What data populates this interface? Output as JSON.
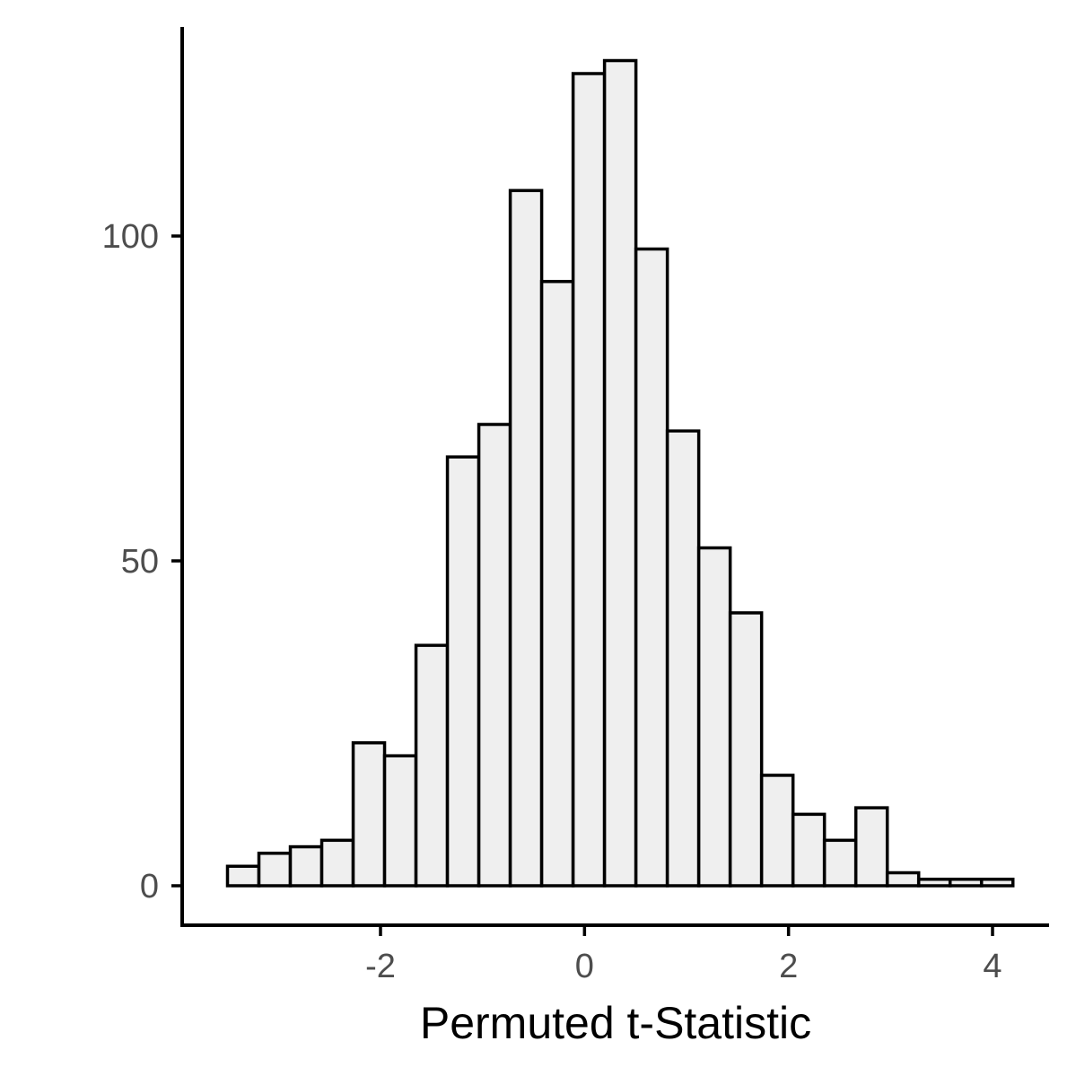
{
  "chart_data": {
    "type": "bar",
    "subtype": "histogram",
    "title": "",
    "xlabel": "Permuted t-Statistic",
    "ylabel": "",
    "xlim": [
      -3.5,
      4.2
    ],
    "ylim": [
      -6,
      126
    ],
    "x_ticks": [
      -2,
      0,
      2,
      4
    ],
    "x_tick_labels": [
      "-2",
      "0",
      "2",
      "4"
    ],
    "y_ticks": [
      0,
      50,
      100
    ],
    "y_tick_labels": [
      "0",
      "50",
      "100"
    ],
    "bin_width": 0.308,
    "bin_edges": [
      -3.5,
      -3.192,
      -2.884,
      -2.576,
      -2.268,
      -1.96,
      -1.652,
      -1.344,
      -1.036,
      -0.728,
      -0.42,
      -0.112,
      0.196,
      0.504,
      0.812,
      1.12,
      1.428,
      1.736,
      2.044,
      2.352,
      2.66,
      2.968,
      3.276,
      3.584,
      3.892,
      4.2
    ],
    "values": [
      3,
      5,
      6,
      7,
      22,
      20,
      37,
      66,
      71,
      107,
      93,
      125,
      127,
      98,
      70,
      52,
      42,
      17,
      11,
      7,
      12,
      2,
      1,
      1,
      1
    ],
    "grid": false,
    "legend": "none",
    "colors": {
      "bar_fill": "#efefef",
      "bar_stroke": "#000000",
      "axis": "#000000",
      "tick_text": "#4d4d4d"
    }
  }
}
